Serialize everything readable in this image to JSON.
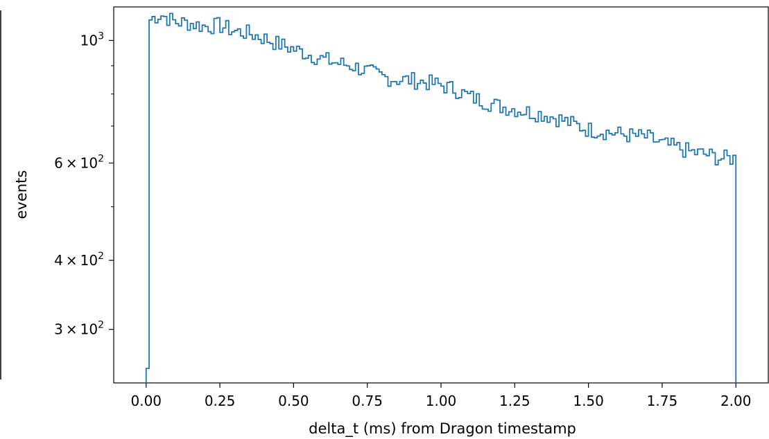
{
  "chart_data": {
    "type": "histogram",
    "xlabel": "delta_t (ms) from Dragon timestamp",
    "ylabel": "events",
    "yscale": "log",
    "grid": false,
    "xlim": [
      -0.11,
      2.11
    ],
    "ylim": [
      240,
      1150
    ],
    "x_ticks": [
      {
        "value": 0.0,
        "label": "0.00"
      },
      {
        "value": 0.25,
        "label": "0.25"
      },
      {
        "value": 0.5,
        "label": "0.50"
      },
      {
        "value": 0.75,
        "label": "0.75"
      },
      {
        "value": 1.0,
        "label": "1.00"
      },
      {
        "value": 1.25,
        "label": "1.25"
      },
      {
        "value": 1.5,
        "label": "1.50"
      },
      {
        "value": 1.75,
        "label": "1.75"
      },
      {
        "value": 2.0,
        "label": "2.00"
      }
    ],
    "y_ticks": [
      {
        "value": 1000,
        "base": "10",
        "exp": "3"
      },
      {
        "value": 600,
        "mantissa": "6",
        "base": "10",
        "exp": "2"
      },
      {
        "value": 400,
        "mantissa": "4",
        "base": "10",
        "exp": "2"
      },
      {
        "value": 300,
        "mantissa": "3",
        "base": "10",
        "exp": "2"
      }
    ],
    "y_minor_ticks": [
      500,
      700,
      800,
      900
    ],
    "bin_range": [
      0.0,
      2.0
    ],
    "bin_width": 0.01,
    "series": [
      {
        "color": "#1f77b4",
        "anchors": [
          [
            0.0,
            255
          ],
          [
            0.005,
            1080
          ],
          [
            0.025,
            1100
          ],
          [
            0.05,
            1115
          ],
          [
            0.1,
            1080
          ],
          [
            0.15,
            1075
          ],
          [
            0.2,
            1060
          ],
          [
            0.25,
            1065
          ],
          [
            0.3,
            1040
          ],
          [
            0.35,
            1030
          ],
          [
            0.4,
            1010
          ],
          [
            0.45,
            985
          ],
          [
            0.5,
            965
          ],
          [
            0.55,
            945
          ],
          [
            0.6,
            925
          ],
          [
            0.65,
            910
          ],
          [
            0.7,
            900
          ],
          [
            0.75,
            880
          ],
          [
            0.8,
            860
          ],
          [
            0.85,
            850
          ],
          [
            0.9,
            848
          ],
          [
            0.95,
            840
          ],
          [
            1.0,
            830
          ],
          [
            1.05,
            815
          ],
          [
            1.1,
            790
          ],
          [
            1.15,
            775
          ],
          [
            1.2,
            760
          ],
          [
            1.25,
            752
          ],
          [
            1.3,
            742
          ],
          [
            1.35,
            735
          ],
          [
            1.4,
            722
          ],
          [
            1.45,
            705
          ],
          [
            1.5,
            690
          ],
          [
            1.55,
            685
          ],
          [
            1.6,
            678
          ],
          [
            1.65,
            672
          ],
          [
            1.7,
            668
          ],
          [
            1.75,
            650
          ],
          [
            1.8,
            640
          ],
          [
            1.85,
            628
          ],
          [
            1.9,
            622
          ],
          [
            1.95,
            612
          ],
          [
            1.995,
            612
          ]
        ],
        "noise_seed": 7,
        "noise_amplitude": 0.035
      }
    ]
  }
}
